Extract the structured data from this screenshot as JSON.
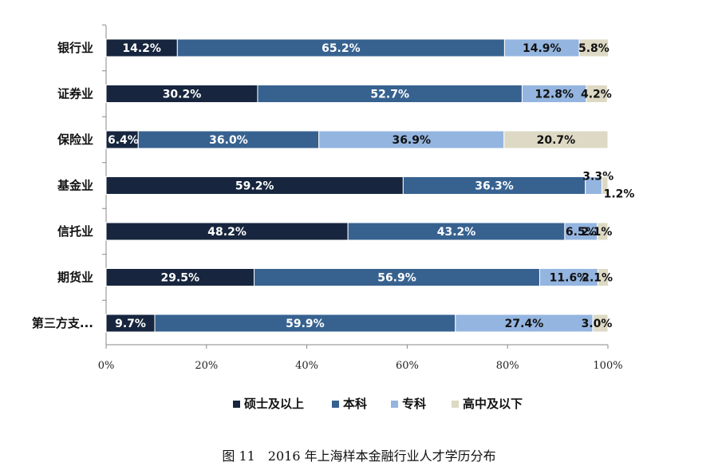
{
  "caption": "图 11　2016 年上海样本金融行业人才学历分布",
  "colors": {
    "硕士及以上": "#17263e",
    "本科": "#376290",
    "专科": "#94b5e0",
    "高中及以下": "#ddd9c4"
  },
  "chart_data": {
    "type": "bar",
    "orientation": "horizontal",
    "stacked": "percent",
    "categories": [
      "银行业",
      "证券业",
      "保险业",
      "基金业",
      "信托业",
      "期货业",
      "第三方支..."
    ],
    "series": [
      {
        "name": "硕士及以上",
        "values": [
          14.2,
          30.2,
          6.4,
          59.2,
          48.2,
          29.5,
          9.7
        ],
        "labels": [
          "14.2%",
          "30.2%",
          "6.4%",
          "59.2%",
          "48.2%",
          "29.5%",
          "9.7%"
        ]
      },
      {
        "name": "本科",
        "values": [
          65.2,
          52.7,
          36.0,
          36.3,
          43.2,
          56.9,
          59.9
        ],
        "labels": [
          "65.2%",
          "52.7%",
          "36.0%",
          "36.3%",
          "43.2%",
          "56.9%",
          "59.9%"
        ]
      },
      {
        "name": "专科",
        "values": [
          14.9,
          12.8,
          36.9,
          3.3,
          6.5,
          11.6,
          27.4
        ],
        "labels": [
          "14.9%",
          "12.8%",
          "36.9%",
          "3.3%",
          "6.5%",
          "11.6%",
          "27.4%"
        ]
      },
      {
        "name": "高中及以下",
        "values": [
          5.8,
          4.2,
          20.7,
          1.2,
          2.1,
          2.1,
          3.0
        ],
        "labels": [
          "5.8%",
          "4.2%",
          "20.7%",
          "1.2%",
          "2.1%",
          "2.1%",
          "3.0%"
        ]
      }
    ],
    "x_ticks": [
      "0%",
      "20%",
      "40%",
      "60%",
      "80%",
      "100%"
    ],
    "xlim": [
      0,
      100
    ],
    "grid": false,
    "legend_position": "bottom"
  }
}
